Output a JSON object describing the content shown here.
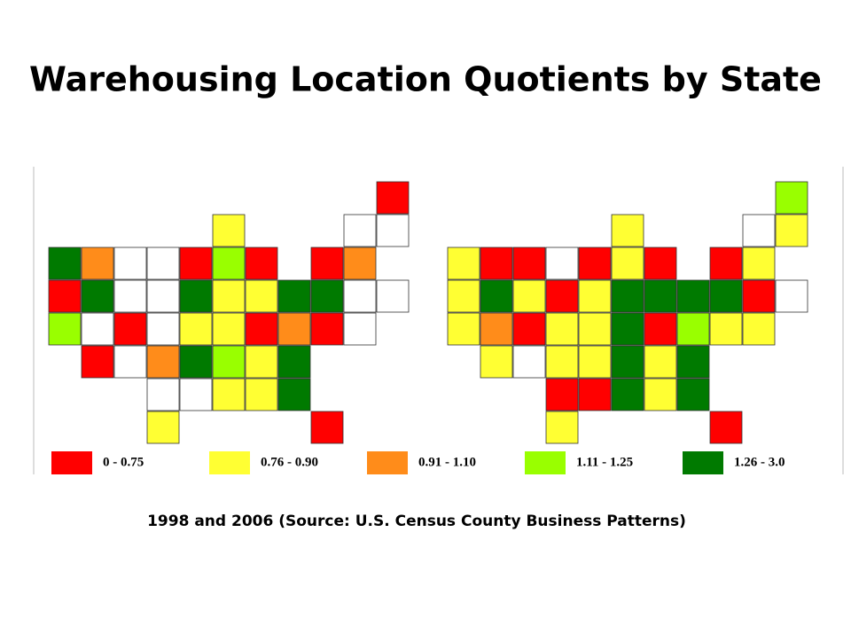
{
  "title": "Warehousing Location Quotients by State",
  "caption": "1998 and 2006 (Source: U.S. Census County Business Patterns)",
  "legend": [
    {
      "label": "0 - 0.75",
      "color": "#ff0000"
    },
    {
      "label": "0.76 - 0.90",
      "color": "#ffff33"
    },
    {
      "label": "0.91 - 1.10",
      "color": "#ff8c1a"
    },
    {
      "label": "1.11 - 1.25",
      "color": "#99ff00"
    },
    {
      "label": "1.26 - 3.0",
      "color": "#007a00"
    }
  ],
  "maps": [
    {
      "classes": [
        0,
        1,
        null,
        null,
        4,
        2,
        null,
        null,
        0,
        3,
        0,
        0,
        2,
        0,
        4,
        null,
        null,
        4,
        1,
        1,
        4,
        4,
        null,
        null,
        3,
        null,
        0,
        null,
        1,
        1,
        0,
        2,
        0,
        null,
        0,
        null,
        2,
        4,
        3,
        1,
        4,
        null,
        null,
        1,
        1,
        4,
        1,
        0
      ]
    },
    {
      "classes": [
        3,
        1,
        null,
        1,
        1,
        0,
        0,
        null,
        0,
        1,
        0,
        0,
        1,
        1,
        4,
        1,
        0,
        1,
        4,
        4,
        4,
        4,
        0,
        null,
        1,
        2,
        0,
        1,
        1,
        4,
        0,
        3,
        1,
        1,
        1,
        null,
        1,
        1,
        4,
        1,
        4,
        0,
        0,
        4,
        1,
        4,
        1,
        0
      ]
    }
  ]
}
